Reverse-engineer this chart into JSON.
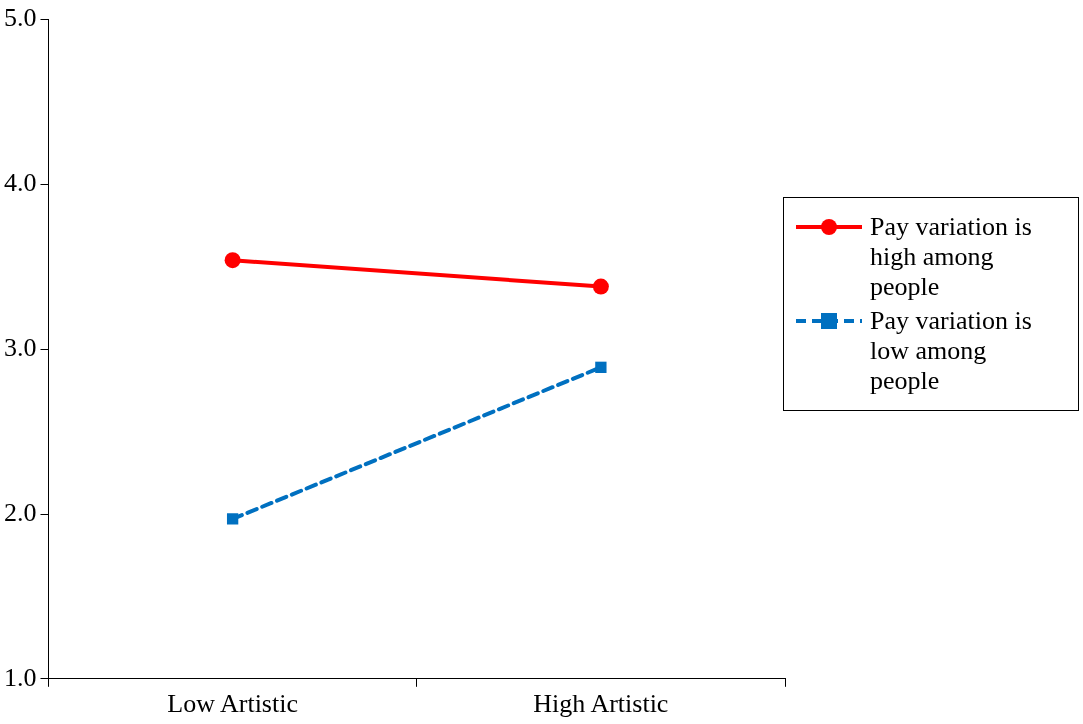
{
  "chart_data": {
    "type": "line",
    "categories": [
      "Low Artistic",
      "High Artistic"
    ],
    "series": [
      {
        "name": "Pay variation is high among people",
        "color": "#ff0000",
        "values": [
          3.54,
          3.38
        ],
        "marker": "circle",
        "line_style": "solid"
      },
      {
        "name": "Pay variation is low among people",
        "color": "#0070c0",
        "values": [
          1.97,
          2.89
        ],
        "marker": "square",
        "line_style": "dashed"
      }
    ],
    "ylim": [
      1,
      5
    ],
    "yticks": [
      {
        "value": 1,
        "label": "1.0"
      },
      {
        "value": 2,
        "label": "2.0"
      },
      {
        "value": 3,
        "label": "3.0"
      },
      {
        "value": 4,
        "label": "4.0"
      },
      {
        "value": 5,
        "label": "5.0"
      }
    ],
    "legend": "right"
  }
}
